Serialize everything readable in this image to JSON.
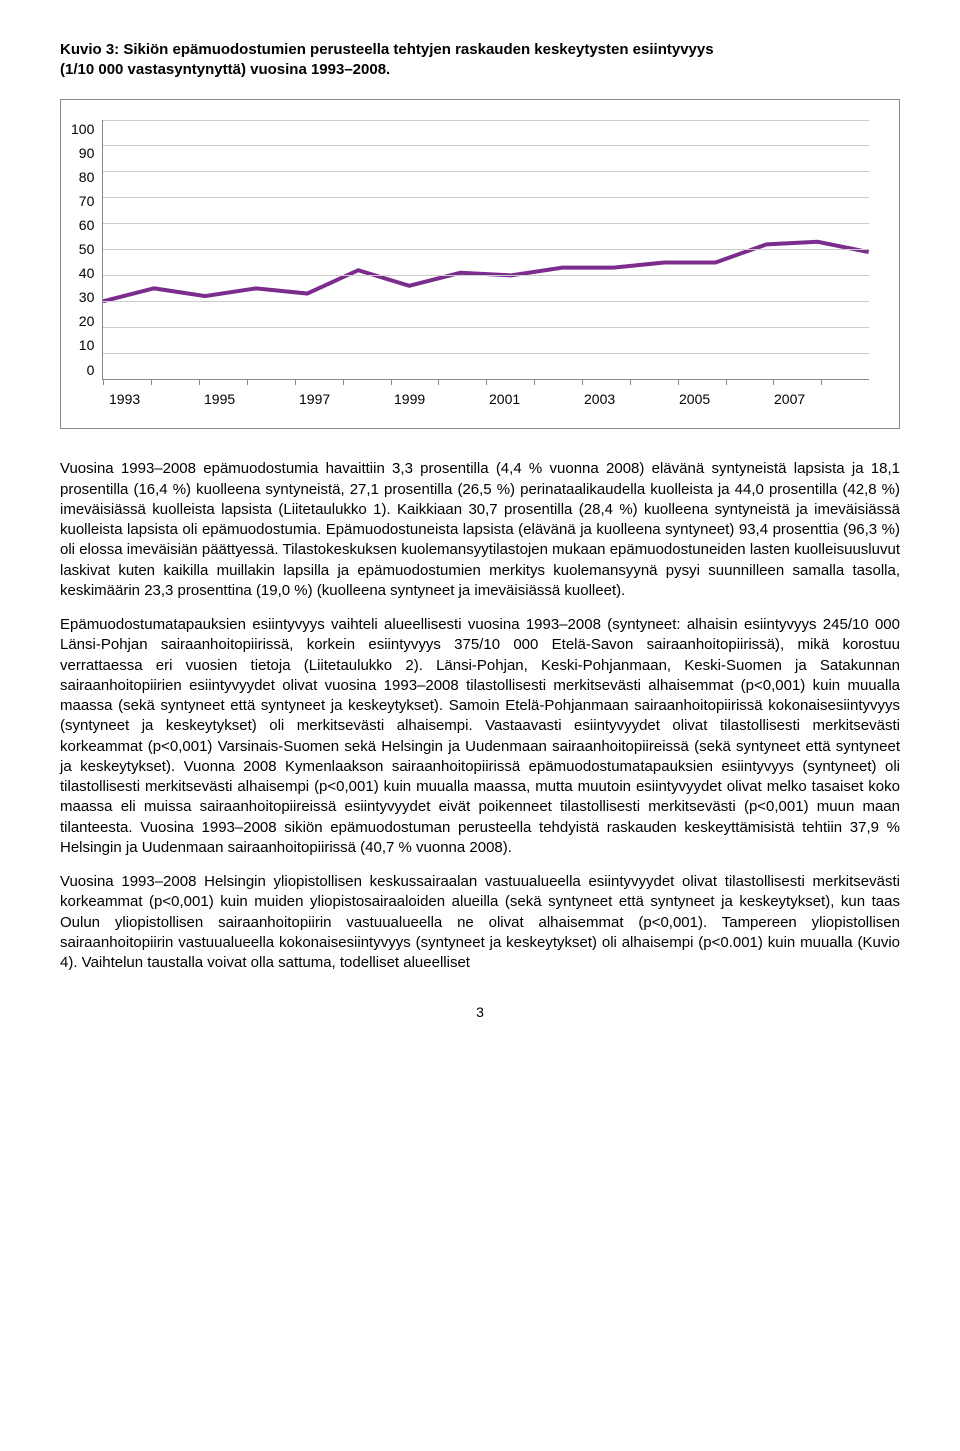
{
  "figure": {
    "title_line1": "Kuvio 3: Sikiön epämuodostumien perusteella tehtyjen raskauden keskeytysten esiintyvyys",
    "title_line2": "(1/10 000 vastasyntynyttä) vuosina 1993–2008.",
    "chart": {
      "type": "line",
      "ylim": [
        0,
        100
      ],
      "ytick_step": 10,
      "y_ticks": [
        "100",
        "90",
        "80",
        "70",
        "60",
        "50",
        "40",
        "30",
        "20",
        "10",
        "0"
      ],
      "x_years": [
        1993,
        1994,
        1995,
        1996,
        1997,
        1998,
        1999,
        2000,
        2001,
        2002,
        2003,
        2004,
        2005,
        2006,
        2007,
        2008
      ],
      "x_labels": [
        "1993",
        "1995",
        "1997",
        "1999",
        "2001",
        "2003",
        "2005",
        "2007"
      ],
      "values": [
        30,
        35,
        32,
        35,
        33,
        42,
        36,
        41,
        40,
        43,
        43,
        45,
        45,
        52,
        53,
        49
      ],
      "line_color": "#7c2c8c",
      "line_width": 4,
      "grid_color": "#cccccc",
      "border_color": "#888888",
      "background_color": "#ffffff"
    }
  },
  "paragraphs": {
    "p1": "Vuosina 1993–2008 epämuodostumia havaittiin 3,3 prosentilla (4,4 % vuonna 2008) elävänä syntyneistä lapsista ja 18,1 prosentilla (16,4 %) kuolleena syntyneistä, 27,1 prosentilla (26,5 %) perinataalikaudella kuolleista ja 44,0 prosentilla (42,8 %) imeväisiässä kuolleista lapsista (Liitetaulukko 1). Kaikkiaan 30,7 prosentilla (28,4 %) kuolleena syntyneistä ja imeväisiässä kuolleista lapsista oli epämuodostumia. Epämuodostuneista lapsista (elävänä ja kuolleena syntyneet) 93,4 prosenttia (96,3 %) oli elossa imeväisiän päättyessä. Tilastokeskuksen kuolemansyytilastojen mukaan epämuodostuneiden lasten kuolleisuusluvut laskivat kuten kaikilla muillakin lapsilla ja epämuodostumien merkitys kuolemansyynä pysyi suunnilleen samalla tasolla, keskimäärin 23,3 prosenttina (19,0 %) (kuolleena syntyneet ja imeväisiässä kuolleet).",
    "p2": "Epämuodostumatapauksien esiintyvyys vaihteli alueellisesti vuosina 1993–2008 (syntyneet: alhaisin esiintyvyys 245/10 000 Länsi-Pohjan sairaanhoitopiirissä, korkein esiintyvyys 375/10 000 Etelä-Savon sairaanhoitopiirissä), mikä korostuu verrattaessa eri vuosien tietoja (Liitetaulukko 2). Länsi-Pohjan, Keski-Pohjanmaan, Keski-Suomen ja Satakunnan sairaanhoitopiirien esiintyvyydet olivat vuosina 1993–2008 tilastollisesti merkitsevästi alhaisemmat (p<0,001) kuin muualla maassa (sekä syntyneet että syntyneet ja keskeytykset). Samoin Etelä-Pohjanmaan sairaanhoitopiirissä kokonaisesiintyvyys (syntyneet ja keskeytykset) oli merkitsevästi alhaisempi. Vastaavasti esiintyvyydet olivat tilastollisesti merkitsevästi korkeammat (p<0,001) Varsinais-Suomen sekä Helsingin ja Uudenmaan sairaanhoitopiireissä (sekä syntyneet että syntyneet ja keskeytykset). Vuonna 2008 Kymenlaakson sairaanhoitopiirissä epämuodostumatapauksien esiintyvyys (syntyneet) oli tilastollisesti merkitsevästi alhaisempi (p<0,001) kuin muualla maassa, mutta muutoin esiintyvyydet olivat melko tasaiset koko maassa eli muissa sairaanhoitopiireissä esiintyvyydet eivät poikenneet tilastollisesti merkitsevästi (p<0,001) muun maan tilanteesta. Vuosina 1993–2008 sikiön epämuodostuman perusteella tehdyistä raskauden keskeyttämisistä tehtiin 37,9 % Helsingin ja Uudenmaan sairaanhoitopiirissä (40,7 % vuonna 2008).",
    "p3": "Vuosina 1993–2008 Helsingin yliopistollisen keskussairaalan vastuualueella esiintyvyydet olivat tilastollisesti merkitsevästi korkeammat (p<0,001) kuin muiden yliopistosairaaloiden alueilla (sekä syntyneet että syntyneet ja keskeytykset), kun taas Oulun yliopistollisen sairaanhoitopiirin vastuualueella ne olivat alhaisemmat (p<0,001). Tampereen yliopistollisen sairaanhoitopiirin vastuualueella kokonaisesiintyvyys (syntyneet ja keskeytykset) oli alhaisempi (p<0.001) kuin muualla (Kuvio 4). Vaihtelun taustalla voivat olla sattuma, todelliset alueelliset"
  },
  "page_number": "3"
}
